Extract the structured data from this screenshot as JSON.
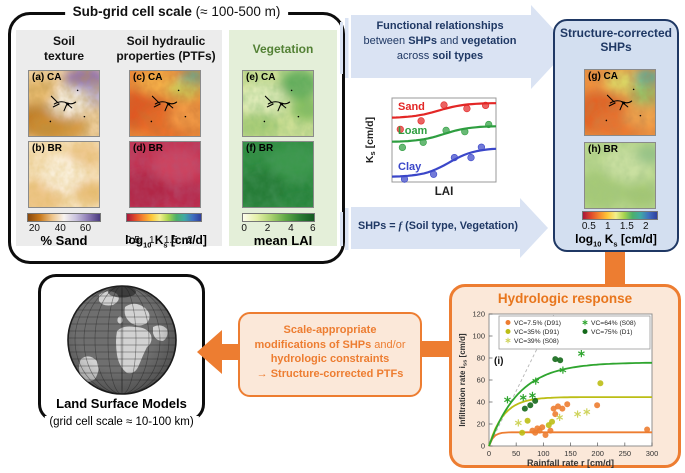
{
  "palette": {
    "orange": "#ed7d31",
    "orange_text": "#e8761d",
    "orange_fill": "#fbe8d9",
    "navy": "#1f3864",
    "arrow_blue": "#dae3f3",
    "structure_fill": "#d3dff0",
    "panel_gray": "#ececec",
    "panel_green": "#e4efd9",
    "green_header": "#538135",
    "cb_sand": [
      "#8a4a0e",
      "#c97a1d",
      "#eec489",
      "#f7f3ef",
      "#c9c2de",
      "#8d7bb5",
      "#4a3a7e"
    ],
    "cb_ks": [
      "#a8173c",
      "#e04a2a",
      "#f5892f",
      "#fdc83a",
      "#f4f08c",
      "#a8d44f",
      "#4db06a",
      "#3fa9a5",
      "#3f6ec0",
      "#2f3f9e"
    ],
    "cb_lai": [
      "#fdfdec",
      "#e4f0a8",
      "#a8d06e",
      "#5fa846",
      "#2c7d34",
      "#145a22"
    ]
  },
  "subgrid": {
    "title_bold": "Sub-grid cell scale",
    "title_rest": " (≈ 100-500 m)",
    "soil_texture": {
      "header1": "Soil",
      "header2": "texture"
    },
    "ptf": {
      "header1": "Soil hydraulic",
      "header2": "properties (PTFs)"
    },
    "vegetation": {
      "header": "Vegetation"
    },
    "cb_sand": {
      "ticks": [
        "20",
        "40",
        "60"
      ],
      "label": "% Sand"
    },
    "cb_ks": {
      "ticks": [
        "0.5",
        "1",
        "1.5",
        "2"
      ],
      "label_log": "log",
      "label_sub10": "10",
      "label_k": " K",
      "label_subs": "s",
      "label_unit": " [cm/d]"
    },
    "cb_lai": {
      "ticks": [
        "0",
        "2",
        "4",
        "6"
      ],
      "label": "mean LAI"
    }
  },
  "maps": {
    "a": {
      "label": "(a) CA",
      "base": "#efd0a0",
      "noise": "#7a4a10",
      "river": true,
      "patches": [
        [
          "#b96f10",
          14,
          50,
          26,
          20
        ],
        [
          "#cf8f33",
          30,
          58,
          30,
          16
        ],
        [
          "#8666ad",
          58,
          10,
          22,
          16
        ],
        [
          "#b9aed1",
          66,
          26,
          16,
          12
        ],
        [
          "#f8f4ec",
          40,
          32,
          22,
          16
        ],
        [
          "#e8b868",
          10,
          22,
          18,
          14
        ]
      ]
    },
    "b": {
      "label": "(b) BR",
      "base": "#f6e2bd",
      "noise": "#b97a20",
      "river": false,
      "patches": [
        [
          "#ecc07c",
          12,
          56,
          24,
          18
        ],
        [
          "#eec488",
          58,
          14,
          20,
          14
        ],
        [
          "#fdf6e8",
          36,
          34,
          24,
          18
        ],
        [
          "#e8b96f",
          64,
          52,
          18,
          12
        ]
      ]
    },
    "c": {
      "label": "(c) CA",
      "base": "#ef8c3a",
      "noise": "#8a2a08",
      "river": true,
      "patches": [
        [
          "#dc4f20",
          12,
          40,
          26,
          22
        ],
        [
          "#e86c28",
          40,
          54,
          30,
          18
        ],
        [
          "#f6b54a",
          30,
          12,
          24,
          14
        ],
        [
          "#49a89b",
          64,
          8,
          14,
          10
        ],
        [
          "#c8cf5a",
          56,
          20,
          18,
          10
        ],
        [
          "#f3a04a",
          60,
          48,
          20,
          14
        ]
      ]
    },
    "d": {
      "label": "(d) BR",
      "base": "#c23352",
      "noise": "#701830",
      "river": false,
      "patches": [
        [
          "#ae2746",
          16,
          50,
          26,
          20
        ],
        [
          "#cf4560",
          48,
          24,
          26,
          18
        ],
        [
          "#b52c4c",
          60,
          56,
          20,
          14
        ]
      ]
    },
    "e": {
      "label": "(e) CA",
      "base": "#cfe097",
      "noise": "#3a7a28",
      "river": true,
      "patches": [
        [
          "#4fa551",
          58,
          14,
          20,
          16
        ],
        [
          "#7ab957",
          66,
          40,
          16,
          12
        ],
        [
          "#e4efc0",
          20,
          30,
          24,
          18
        ],
        [
          "#a8cd74",
          16,
          56,
          22,
          14
        ]
      ]
    },
    "f": {
      "label": "(f) BR",
      "base": "#2f8c40",
      "noise": "#124f1e",
      "river": false,
      "patches": [
        [
          "#257a36",
          18,
          48,
          26,
          20
        ],
        [
          "#3d9a4c",
          52,
          20,
          26,
          18
        ],
        [
          "#27813a",
          60,
          56,
          18,
          12
        ]
      ]
    },
    "g": {
      "label": "(g) CA",
      "base": "#ef9240",
      "noise": "#8a3a10",
      "river": true,
      "patches": [
        [
          "#e05a22",
          14,
          44,
          28,
          22
        ],
        [
          "#e87430",
          36,
          56,
          28,
          16
        ],
        [
          "#d8df6a",
          42,
          12,
          22,
          12
        ],
        [
          "#4aaaa0",
          64,
          8,
          14,
          10
        ],
        [
          "#8cc46a",
          62,
          26,
          16,
          12
        ],
        [
          "#f0a850",
          58,
          48,
          18,
          12
        ]
      ]
    },
    "h": {
      "label": "(h) BR",
      "base": "#b8d68c",
      "noise": "#5a8a3a",
      "river": false,
      "patches": [
        [
          "#a2c873",
          16,
          48,
          26,
          20
        ],
        [
          "#cde2a4",
          44,
          22,
          26,
          18
        ],
        [
          "#9fc36e",
          58,
          54,
          18,
          12
        ],
        [
          "#8fbf86",
          66,
          12,
          14,
          10
        ]
      ]
    }
  },
  "relationship_arrow": {
    "line1": "Functional relationships",
    "line2": [
      "between ",
      "SHPs",
      " and ",
      "vegetation"
    ],
    "line3": [
      "across ",
      "soil types"
    ]
  },
  "shps_arrow": {
    "prefix": "SHPs = ",
    "f": "f",
    "suffix": " (Soil type, Vegetation)"
  },
  "structure_box": {
    "title1": "Structure-corrected",
    "title2": "SHPs",
    "colorbar": {
      "ticks": [
        "0.5",
        "1",
        "1.5",
        "2"
      ]
    }
  },
  "lsm_box": {
    "title": "Land Surface Models",
    "subtitle": "(grid cell scale ≈ 10-100 km)"
  },
  "modification_box": {
    "line1": "Scale-appropriate",
    "line2_bold": "modifications of SHPs",
    "line2_reg": " and/or",
    "line3": "hydrologic constraints",
    "line4": "→ Structure-corrected PTFs"
  },
  "hydro_box": {
    "title": "Hydrologic response"
  },
  "chart_data": [
    {
      "id": "ks-lai",
      "type": "line",
      "xlabel": "LAI",
      "ylabel_main": "K",
      "ylabel_sub": "s",
      "ylabel_unit": " [cm/d]",
      "series": [
        {
          "name": "Sand",
          "color": "#e32726",
          "y_start": 20,
          "y_end": 5,
          "mid": 0.45,
          "steep": 8,
          "label_xy": [
            40,
            16
          ],
          "dots": [
            [
              0.08,
              12
            ],
            [
              0.28,
              6
            ],
            [
              0.5,
              -4
            ],
            [
              0.72,
              4
            ],
            [
              0.9,
              2
            ]
          ]
        },
        {
          "name": "Loam",
          "color": "#2e9e40",
          "y_start": 44,
          "y_end": 28,
          "mid": 0.5,
          "steep": 8,
          "label_xy": [
            40,
            40
          ],
          "dots": [
            [
              0.1,
              6
            ],
            [
              0.3,
              3
            ],
            [
              0.52,
              -3
            ],
            [
              0.7,
              3
            ],
            [
              0.93,
              -2
            ]
          ]
        },
        {
          "name": "Clay",
          "color": "#3b47c9",
          "y_start": 79,
          "y_end": 50,
          "mid": 0.55,
          "steep": 8,
          "label_xy": [
            40,
            76
          ],
          "dots": [
            [
              0.12,
              3
            ],
            [
              0.4,
              4
            ],
            [
              0.6,
              -2
            ],
            [
              0.76,
              5
            ],
            [
              0.86,
              -3
            ]
          ]
        }
      ]
    },
    {
      "id": "infiltration",
      "type": "scatter",
      "panel_label": "(i)",
      "xlabel": "Rainfall rate r [cm/d]",
      "ylabel_main": "Infiltration rate i",
      "ylabel_sub": "ss",
      "ylabel_unit": " [cm/d]",
      "xlim": [
        0,
        300
      ],
      "ylim": [
        0,
        120
      ],
      "xticks": [
        0,
        50,
        100,
        150,
        200,
        250,
        300
      ],
      "yticks": [
        0,
        20,
        40,
        60,
        80,
        100,
        120
      ],
      "identity_line": true,
      "series": [
        {
          "name": "VC=7.5% (D91)",
          "marker": "circle",
          "color": "#ed7d31",
          "curve": {
            "sat": 12.5,
            "scale": 8
          },
          "points": [
            [
              80,
              14
            ],
            [
              85,
              12
            ],
            [
              89,
              16
            ],
            [
              93,
              14
            ],
            [
              98,
              17
            ],
            [
              104,
              10
            ],
            [
              113,
              14
            ],
            [
              119,
              34
            ],
            [
              122,
              29
            ],
            [
              127,
              36
            ],
            [
              135,
              34
            ],
            [
              144,
              38
            ],
            [
              199,
              37
            ],
            [
              291,
              15
            ]
          ]
        },
        {
          "name": "VC=35% (D91)",
          "marker": "circle",
          "color": "#bcbe15",
          "curve": {
            "sat": 44.5,
            "scale": 27
          },
          "points": [
            [
              61,
              12
            ],
            [
              71,
              23
            ],
            [
              110,
              19
            ],
            [
              116,
              22
            ],
            [
              205,
              57
            ]
          ]
        },
        {
          "name": "VC=39% (S08)",
          "marker": "asterisk",
          "color": "#cfd45e",
          "curve": null,
          "points": [
            [
              54,
              21
            ],
            [
              130,
              26
            ],
            [
              163,
              29
            ],
            [
              180,
              31
            ]
          ]
        },
        {
          "name": "VC=64% (S08)",
          "marker": "asterisk",
          "color": "#2fa52f",
          "curve": {
            "sat": 76,
            "scale": 55
          },
          "points": [
            [
              34,
              42
            ],
            [
              63,
              44
            ],
            [
              80,
              46
            ],
            [
              86,
              59
            ],
            [
              136,
              69
            ],
            [
              170,
              84
            ]
          ]
        },
        {
          "name": "VC=75% (D1)",
          "marker": "circle",
          "color": "#14691a",
          "curve": null,
          "points": [
            [
              66,
              34
            ],
            [
              76,
              37
            ],
            [
              85,
              41
            ],
            [
              122,
              79
            ],
            [
              131,
              78
            ]
          ]
        }
      ]
    }
  ]
}
